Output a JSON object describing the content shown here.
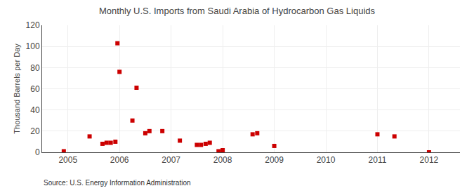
{
  "chart_data": {
    "type": "scatter",
    "title": "Monthly U.S. Imports from Saudi Arabia of Hydrocarbon Gas Liquids",
    "ylabel": "Thousand Barrels per Day",
    "annotations": [
      "Source: U.S. Energy Information Administration"
    ],
    "x": [
      2004.92,
      2005.42,
      2005.67,
      2005.75,
      2005.83,
      2005.92,
      2005.96,
      2006.0,
      2006.25,
      2006.33,
      2006.5,
      2006.58,
      2006.83,
      2007.17,
      2007.5,
      2007.58,
      2007.67,
      2007.75,
      2007.92,
      2008.0,
      2008.58,
      2008.67,
      2009.0,
      2011.0,
      2011.33,
      2012.0
    ],
    "values": [
      1,
      15,
      8,
      9,
      9,
      10,
      103,
      76,
      30,
      61,
      18,
      20,
      20,
      11,
      7,
      7,
      8,
      9,
      1,
      2,
      17,
      18,
      6,
      17,
      15,
      0
    ],
    "color": "#cc0000",
    "marker": "square",
    "xlim": [
      2004.5,
      2012.6
    ],
    "xticks": [
      2005,
      2006,
      2007,
      2008,
      2009,
      2010,
      2011,
      2012
    ],
    "ylim": [
      0,
      120
    ],
    "yticks": [
      0,
      20,
      40,
      60,
      80,
      100,
      120
    ],
    "grid": true
  }
}
